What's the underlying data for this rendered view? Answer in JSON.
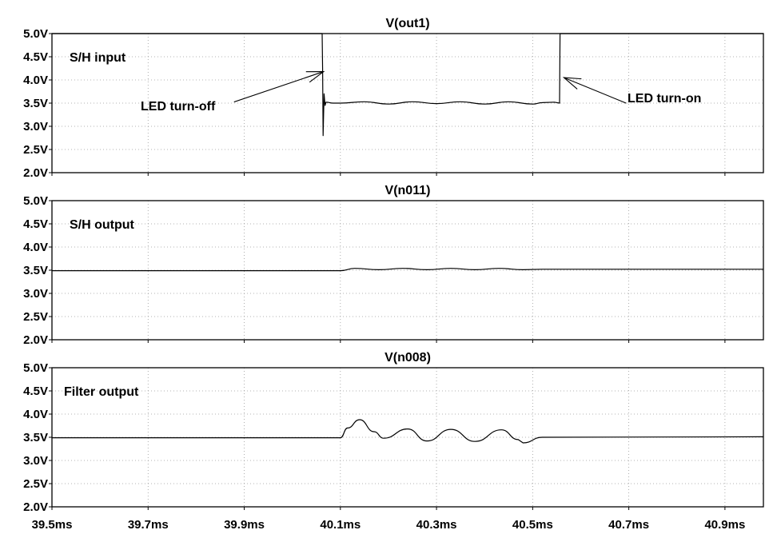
{
  "chart_data": [
    {
      "type": "line",
      "title": "V(out1)",
      "annotation": "S/H input",
      "arrows": [
        {
          "label": "LED turn-off",
          "target_x": 40.065,
          "target_y": 4.18
        },
        {
          "label": "LED turn-on",
          "target_x": 40.565,
          "target_y": 4.05
        }
      ],
      "ylim": [
        2.0,
        5.0
      ],
      "ytick_labels": [
        "5.0V",
        "4.5V",
        "4.0V",
        "3.5V",
        "3.0V",
        "2.5V",
        "2.0V"
      ],
      "series": [
        {
          "x": [
            39.5,
            40.062,
            40.063,
            40.064,
            40.066,
            40.068,
            40.07,
            40.085,
            40.1,
            40.15,
            40.2,
            40.25,
            40.3,
            40.35,
            40.4,
            40.45,
            40.5,
            40.52,
            40.545,
            40.556,
            40.557,
            40.98
          ],
          "y": [
            5.0,
            5.0,
            4.2,
            2.8,
            3.7,
            3.45,
            3.52,
            3.5,
            3.5,
            3.53,
            3.48,
            3.53,
            3.49,
            3.53,
            3.48,
            3.53,
            3.48,
            3.51,
            3.52,
            3.5,
            5.0,
            5.0
          ]
        }
      ]
    },
    {
      "type": "line",
      "title": "V(n011)",
      "annotation": "S/H output",
      "ylim": [
        2.0,
        5.0
      ],
      "ytick_labels": [
        "5.0V",
        "4.5V",
        "4.0V",
        "3.5V",
        "3.0V",
        "2.5V",
        "2.0V"
      ],
      "series": [
        {
          "x": [
            39.5,
            40.1,
            40.13,
            40.18,
            40.23,
            40.28,
            40.33,
            40.38,
            40.43,
            40.48,
            40.52,
            40.98
          ],
          "y": [
            3.49,
            3.49,
            3.54,
            3.51,
            3.54,
            3.51,
            3.54,
            3.51,
            3.54,
            3.51,
            3.52,
            3.52
          ]
        }
      ]
    },
    {
      "type": "line",
      "title": "V(n008)",
      "annotation": "Filter output",
      "xlim": [
        39.5,
        40.98
      ],
      "ylim": [
        2.0,
        5.0
      ],
      "ytick_labels": [
        "5.0V",
        "4.5V",
        "4.0V",
        "3.5V",
        "3.0V",
        "2.5V",
        "2.0V"
      ],
      "xtick_labels": [
        "39.5ms",
        "39.7ms",
        "39.9ms",
        "40.1ms",
        "40.3ms",
        "40.5ms",
        "40.7ms",
        "40.9ms"
      ],
      "series": [
        {
          "x": [
            39.5,
            40.1,
            40.115,
            40.14,
            40.17,
            40.19,
            40.24,
            40.28,
            40.33,
            40.38,
            40.435,
            40.47,
            40.48,
            40.52,
            40.98
          ],
          "y": [
            3.49,
            3.49,
            3.7,
            3.88,
            3.62,
            3.48,
            3.68,
            3.42,
            3.67,
            3.41,
            3.66,
            3.45,
            3.38,
            3.5,
            3.51
          ]
        }
      ]
    }
  ]
}
